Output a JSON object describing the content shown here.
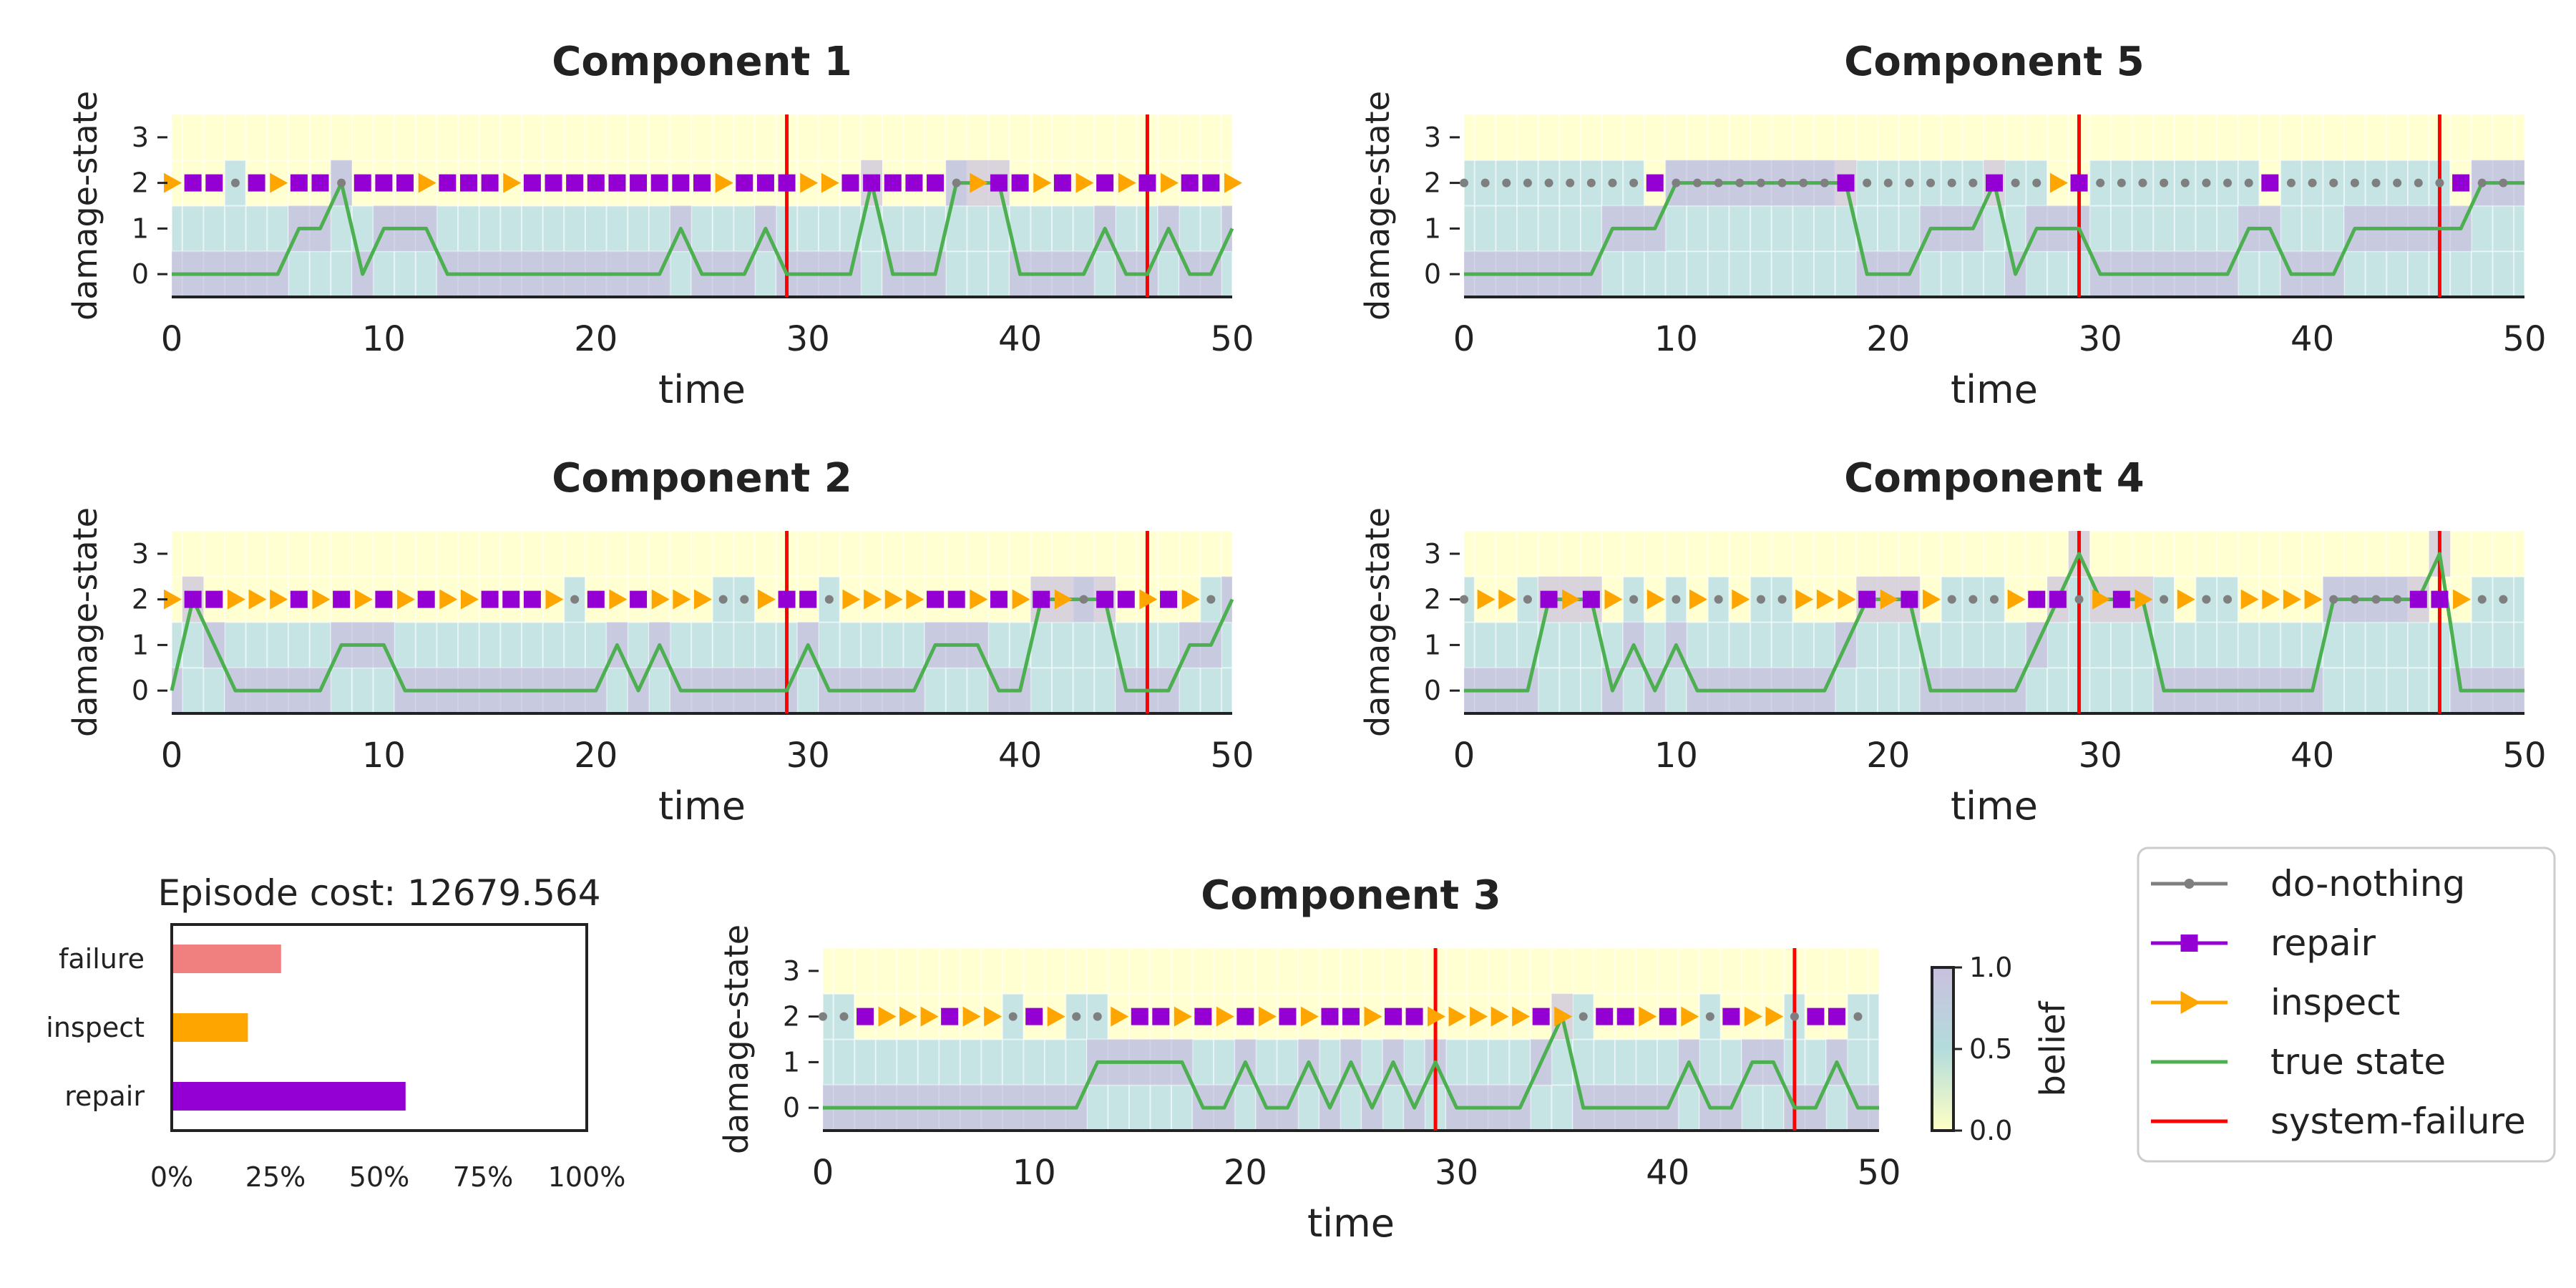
{
  "colors": {
    "true_state": "#4caf50",
    "do_nothing": "#7f7f7f",
    "repair": "#9400d3",
    "inspect": "#ffa500",
    "failure_bar": "#f08080",
    "system_failure": "#ff0000",
    "belief_high": "#c9c0de",
    "belief_mid": "#b3dcdc",
    "belief_low": "#ffffc4"
  },
  "episode_cost": {
    "title": "Episode cost: 12679.564",
    "categories": [
      "failure",
      "inspect",
      "repair"
    ],
    "values": [
      0.26,
      0.18,
      0.56
    ],
    "xticks": [
      "0%",
      "25%",
      "50%",
      "75%",
      "100%"
    ]
  },
  "legend": {
    "items": [
      {
        "label": "do-nothing",
        "kind": "dot"
      },
      {
        "label": "repair",
        "kind": "square"
      },
      {
        "label": "inspect",
        "kind": "triangle"
      },
      {
        "label": "true state",
        "kind": "line"
      },
      {
        "label": "system-failure",
        "kind": "redline"
      }
    ]
  },
  "colorbar": {
    "label": "belief",
    "ticks": [
      "1.0",
      "0.5",
      "0.0"
    ]
  },
  "chart_data": [
    {
      "type": "line",
      "title": "Component 1",
      "xlabel": "time",
      "ylabel": "damage-state",
      "xlim": [
        0,
        50
      ],
      "ylim": [
        -0.5,
        3.5
      ],
      "xticks": [
        "0",
        "10",
        "20",
        "30",
        "40",
        "50"
      ],
      "yticks": [
        "0",
        "1",
        "2",
        "3"
      ],
      "system_failures": [
        29,
        46
      ],
      "true_state": [
        0,
        0,
        0,
        0,
        0,
        0,
        1,
        1,
        2,
        0,
        1,
        1,
        1,
        0,
        0,
        0,
        0,
        0,
        0,
        0,
        0,
        0,
        0,
        0,
        1,
        0,
        0,
        0,
        1,
        0,
        0,
        0,
        0,
        2,
        0,
        0,
        0,
        2,
        2,
        2,
        0,
        0,
        0,
        0,
        1,
        0,
        0,
        1,
        0,
        0,
        1
      ],
      "actions": "IRRDRIRRDRRRIRRRIRRRRRRRRRIRRRIIRRRRRDIRRIRIRIRIRRI"
    },
    {
      "type": "line",
      "title": "Component 5",
      "xlabel": "time",
      "ylabel": "damage-state",
      "xlim": [
        0,
        50
      ],
      "ylim": [
        -0.5,
        3.5
      ],
      "xticks": [
        "0",
        "10",
        "20",
        "30",
        "40",
        "50"
      ],
      "yticks": [
        "0",
        "1",
        "2",
        "3"
      ],
      "system_failures": [
        29,
        46
      ],
      "true_state": [
        0,
        0,
        0,
        0,
        0,
        0,
        0,
        1,
        1,
        1,
        2,
        2,
        2,
        2,
        2,
        2,
        2,
        2,
        2,
        0,
        0,
        0,
        1,
        1,
        1,
        2,
        0,
        1,
        1,
        1,
        0,
        0,
        0,
        0,
        0,
        0,
        0,
        1,
        1,
        0,
        0,
        0,
        1,
        1,
        1,
        1,
        1,
        1,
        2,
        2,
        2
      ],
      "actions": "DDDDDDDDDRDDDDDDDDRDDDDDDRDDIRDDDDDDDDRDDDDDDDDRDD"
    },
    {
      "type": "line",
      "title": "Component 2",
      "xlabel": "time",
      "ylabel": "damage-state",
      "xlim": [
        0,
        50
      ],
      "ylim": [
        -0.5,
        3.5
      ],
      "xticks": [
        "0",
        "10",
        "20",
        "30",
        "40",
        "50"
      ],
      "yticks": [
        "0",
        "1",
        "2",
        "3"
      ],
      "system_failures": [
        29,
        46
      ],
      "true_state": [
        0,
        2,
        1,
        0,
        0,
        0,
        0,
        0,
        1,
        1,
        1,
        0,
        0,
        0,
        0,
        0,
        0,
        0,
        0,
        0,
        0,
        1,
        0,
        1,
        0,
        0,
        0,
        0,
        0,
        0,
        1,
        0,
        0,
        0,
        0,
        0,
        1,
        1,
        1,
        0,
        0,
        2,
        2,
        2,
        2,
        0,
        0,
        0,
        1,
        1,
        2
      ],
      "actions": "IRRIIIRIRIRIRIIRRRIDRIRIIIDDIRRDIIIIRRIRIRIDRRIRID"
    },
    {
      "type": "line",
      "title": "Component 4",
      "xlabel": "time",
      "ylabel": "damage-state",
      "xlim": [
        0,
        50
      ],
      "ylim": [
        -0.5,
        3.5
      ],
      "xticks": [
        "0",
        "10",
        "20",
        "30",
        "40",
        "50"
      ],
      "yticks": [
        "0",
        "1",
        "2",
        "3"
      ],
      "system_failures": [
        29,
        46
      ],
      "true_state": [
        0,
        0,
        0,
        0,
        2,
        2,
        2,
        0,
        1,
        0,
        1,
        0,
        0,
        0,
        0,
        0,
        0,
        0,
        1,
        2,
        2,
        2,
        0,
        0,
        0,
        0,
        0,
        1,
        2,
        3,
        2,
        2,
        2,
        0,
        0,
        0,
        0,
        0,
        0,
        0,
        0,
        2,
        2,
        2,
        2,
        2,
        3,
        0,
        0,
        0,
        0
      ],
      "actions": "DIIDRIRIDIDIDIDDIIIRIRIDDDIRRDIRIDIDDIIIIDDDDRRIDD"
    },
    {
      "type": "line",
      "title": "Component 3",
      "xlabel": "time",
      "ylabel": "damage-state",
      "xlim": [
        0,
        50
      ],
      "ylim": [
        -0.5,
        3.5
      ],
      "xticks": [
        "0",
        "10",
        "20",
        "30",
        "40",
        "50"
      ],
      "yticks": [
        "0",
        "1",
        "2",
        "3"
      ],
      "system_failures": [
        29,
        46
      ],
      "true_state": [
        0,
        0,
        0,
        0,
        0,
        0,
        0,
        0,
        0,
        0,
        0,
        0,
        0,
        1,
        1,
        1,
        1,
        1,
        0,
        0,
        1,
        0,
        0,
        1,
        0,
        1,
        0,
        1,
        0,
        1,
        0,
        0,
        0,
        0,
        1,
        2,
        0,
        0,
        0,
        0,
        0,
        1,
        0,
        0,
        1,
        1,
        0,
        0,
        1,
        0,
        0
      ],
      "actions": "DDRIIIRIIDRIDDIRRIRIRIRIRRIRRIIIIIRIDRRIRIDRIIDRRD"
    }
  ]
}
